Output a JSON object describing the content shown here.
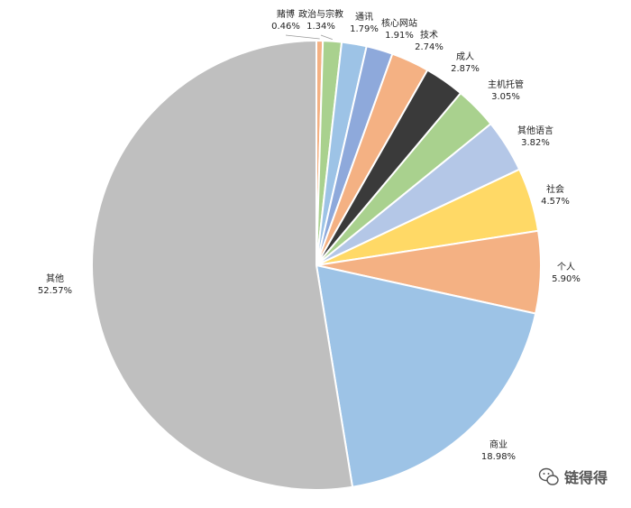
{
  "chart_data": {
    "type": "pie",
    "categories": [
      "赌博",
      "政治与宗教",
      "通讯",
      "核心网站",
      "技术",
      "成人",
      "主机托管",
      "其他语言",
      "社会",
      "个人",
      "商业",
      "其他"
    ],
    "values": [
      0.46,
      1.34,
      1.79,
      1.91,
      2.74,
      2.87,
      3.05,
      3.82,
      4.57,
      5.9,
      18.98,
      52.57
    ],
    "value_labels": [
      "0.46%",
      "1.34%",
      "1.79%",
      "1.91%",
      "2.74%",
      "2.87%",
      "3.05%",
      "3.82%",
      "4.57%",
      "5.90%",
      "18.98%",
      "52.57%"
    ],
    "colors": [
      "#F4B183",
      "#A9D18E",
      "#9DC3E6",
      "#8EA9DB",
      "#F4B183",
      "#3A3A3A",
      "#A9D18E",
      "#B4C7E7",
      "#FFD966",
      "#F4B183",
      "#9DC3E6",
      "#BFBFBF"
    ],
    "start_angle_deg": 0,
    "direction": "clockwise",
    "legend": "none"
  },
  "watermark": {
    "text": "链得得",
    "icon": "wechat-icon"
  }
}
